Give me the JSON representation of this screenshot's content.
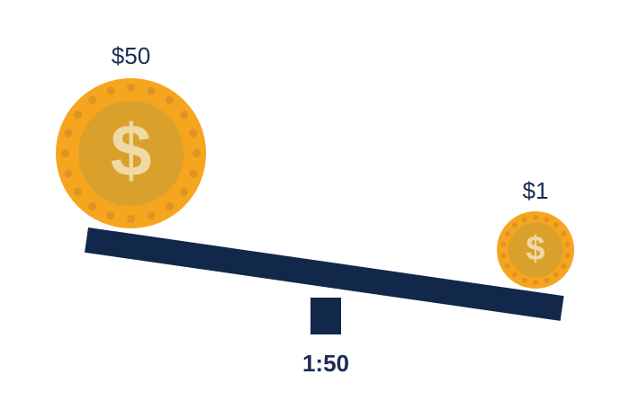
{
  "scene": {
    "large_coin": {
      "label": "$50",
      "symbol": "$"
    },
    "small_coin": {
      "label": "$1",
      "symbol": "$"
    },
    "ratio_label": "1:50"
  },
  "colors": {
    "background": "#FFFFFF",
    "coin_ring": "#F6A51F",
    "coin_dot": "#DE9422",
    "coin_inner": "#D9A12C",
    "coin_symbol": "#EFD9A4",
    "navy": "#12284A",
    "text_navy": "#1B2B55"
  }
}
